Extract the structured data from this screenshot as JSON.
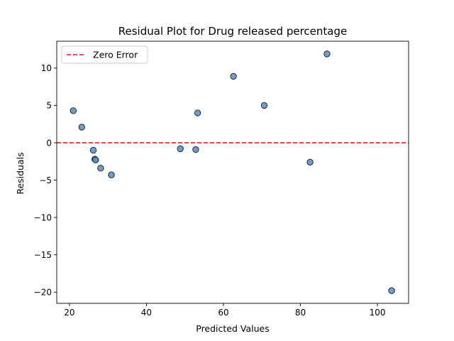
{
  "chart_data": {
    "type": "scatter",
    "title": "Residual Plot for Drug released percentage",
    "xlabel": "Predicted Values",
    "ylabel": "Residuals",
    "xlim": [
      16.7,
      108.1
    ],
    "ylim": [
      -21.5,
      13.6
    ],
    "xticks": [
      20,
      40,
      60,
      80,
      100
    ],
    "yticks": [
      10,
      5,
      0,
      -5,
      -10,
      -15,
      -20
    ],
    "xtick_labels": [
      "20",
      "40",
      "60",
      "80",
      "100"
    ],
    "ytick_labels": [
      "10",
      "5",
      "0",
      "−5",
      "−10",
      "−15",
      "−20"
    ],
    "grid": false,
    "legend": {
      "position": "upper-left",
      "entries": [
        "Zero Error"
      ]
    },
    "reference_line": {
      "y": 0,
      "style": "dashed",
      "color": "#e41a1c",
      "label": "Zero Error"
    },
    "marker_color": "#5b8db8",
    "marker_edge": "#1a2a3a",
    "points": [
      {
        "x": 21.0,
        "y": 4.3
      },
      {
        "x": 23.2,
        "y": 2.1
      },
      {
        "x": 26.2,
        "y": -1.0
      },
      {
        "x": 26.6,
        "y": -2.2
      },
      {
        "x": 26.8,
        "y": -2.3
      },
      {
        "x": 28.1,
        "y": -3.4
      },
      {
        "x": 30.9,
        "y": -4.3
      },
      {
        "x": 48.8,
        "y": -0.8
      },
      {
        "x": 52.8,
        "y": -0.9
      },
      {
        "x": 53.3,
        "y": 4.0
      },
      {
        "x": 62.6,
        "y": 8.9
      },
      {
        "x": 70.6,
        "y": 5.0
      },
      {
        "x": 82.5,
        "y": -2.6
      },
      {
        "x": 86.9,
        "y": 11.9
      },
      {
        "x": 103.7,
        "y": -19.8
      }
    ]
  }
}
